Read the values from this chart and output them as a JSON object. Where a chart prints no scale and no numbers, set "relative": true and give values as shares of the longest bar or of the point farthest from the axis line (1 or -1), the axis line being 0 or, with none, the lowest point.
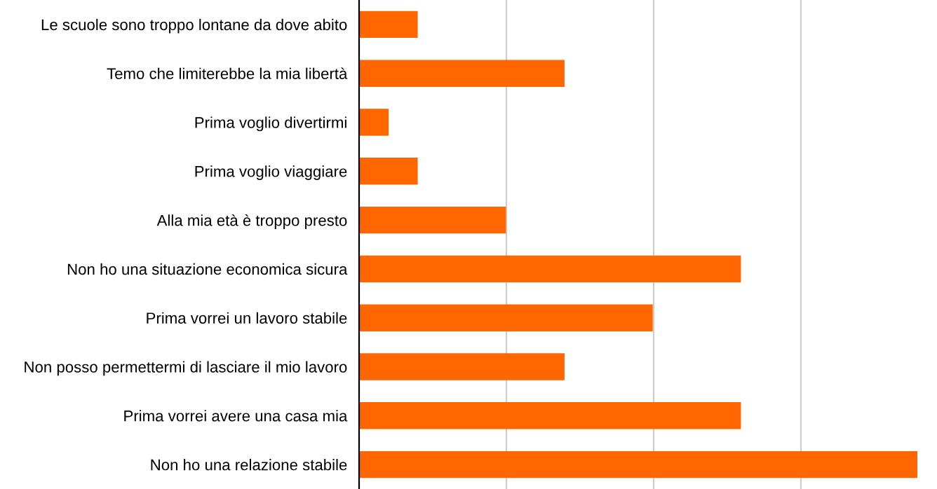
{
  "chart_data": {
    "type": "bar",
    "orientation": "horizontal",
    "relative": true,
    "grid": "x",
    "legend": false,
    "color": "#ff6600",
    "categories": [
      "Le scuole sono troppo lontane da dove abito",
      "Temo che limiterebbe la mia libertà",
      "Prima voglio divertirmi",
      "Prima voglio viaggiare",
      "Alla mia età è troppo presto",
      "Non ho una situazione economica sicura",
      "Prima vorrei un lavoro stabile",
      "Non posso permettermi di lasciare il mio lavoro",
      "Prima vorrei avere una casa mia",
      "Non ho una relazione stabile"
    ],
    "values": [
      0.105,
      0.368,
      0.053,
      0.105,
      0.263,
      0.684,
      0.526,
      0.368,
      0.684,
      1
    ]
  }
}
